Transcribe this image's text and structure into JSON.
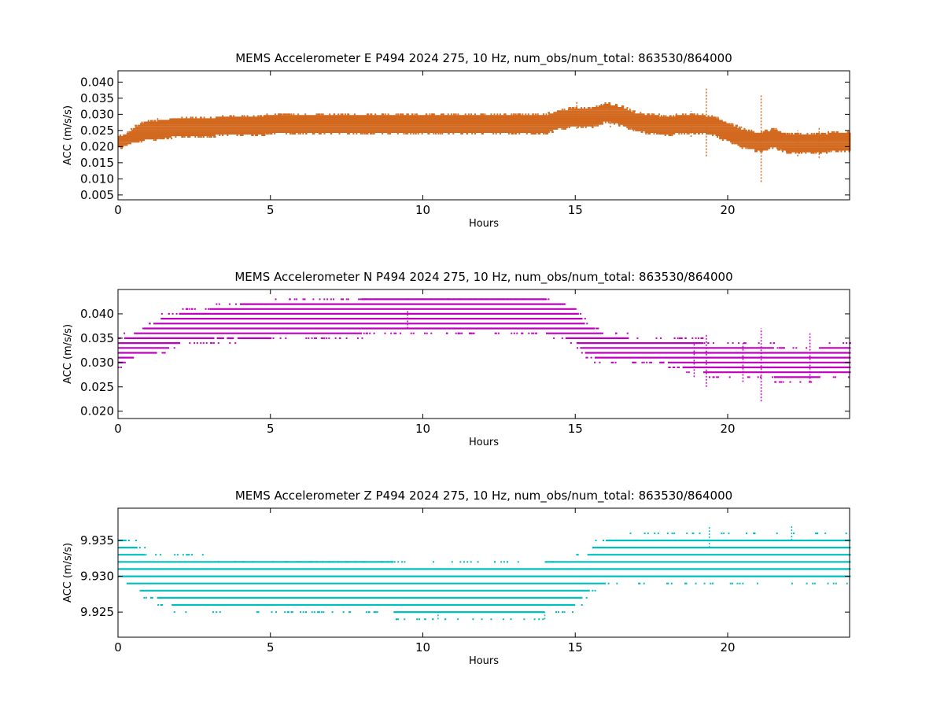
{
  "chart_data": [
    {
      "type": "scatter",
      "title": "MEMS Accelerometer E P494 2024 275, 10 Hz, num_obs/num_total: 863530/864000",
      "xlabel": "Hours",
      "ylabel": "ACC (m/s/s)",
      "xlim": [
        0,
        24
      ],
      "ylim": [
        0.0035,
        0.0435
      ],
      "xticks": [
        0,
        5,
        10,
        15,
        20
      ],
      "yticks": [
        0.005,
        0.01,
        0.015,
        0.02,
        0.025,
        0.03,
        0.035,
        0.04
      ],
      "ytick_labels": [
        "0.005",
        "0.010",
        "0.015",
        "0.020",
        "0.025",
        "0.030",
        "0.035",
        "0.040"
      ],
      "xtick_labels": [
        "0",
        "5",
        "10",
        "15",
        "20"
      ],
      "color": "#d2691e",
      "grid": false,
      "quantum": 0.0005,
      "series": [
        {
          "x": [
            0,
            0.25,
            0.5,
            0.75,
            1,
            1.5,
            2,
            3,
            4,
            5,
            6,
            7,
            8,
            9,
            10,
            11,
            12,
            13,
            14,
            14.5,
            15,
            15.5,
            16,
            16.5,
            17,
            17.5,
            18,
            18.5,
            19,
            19.5,
            20,
            20.5,
            21,
            21.5,
            22,
            22.5,
            23,
            23.5,
            24
          ],
          "y": [
            0.0215,
            0.022,
            0.0235,
            0.0245,
            0.025,
            0.0255,
            0.026,
            0.0262,
            0.0265,
            0.0268,
            0.027,
            0.027,
            0.027,
            0.027,
            0.027,
            0.027,
            0.027,
            0.027,
            0.027,
            0.0285,
            0.029,
            0.029,
            0.0305,
            0.0295,
            0.0275,
            0.027,
            0.0265,
            0.027,
            0.027,
            0.0265,
            0.0245,
            0.0225,
            0.0215,
            0.0225,
            0.021,
            0.021,
            0.021,
            0.0215,
            0.0215
          ],
          "spread": [
            0.0015,
            0.0015,
            0.002,
            0.0025,
            0.0025,
            0.0025,
            0.0025,
            0.0025,
            0.0025,
            0.0025,
            0.0025,
            0.0025,
            0.0025,
            0.0025,
            0.0025,
            0.0025,
            0.0025,
            0.0025,
            0.0025,
            0.0025,
            0.0025,
            0.0025,
            0.0025,
            0.0025,
            0.0025,
            0.0025,
            0.0025,
            0.0025,
            0.0025,
            0.0025,
            0.0025,
            0.0025,
            0.0025,
            0.0025,
            0.0025,
            0.0025,
            0.0025,
            0.0025,
            0.0025
          ]
        }
      ],
      "spikes": [
        {
          "x": 19.3,
          "y_min": 0.017,
          "y_max": 0.038
        },
        {
          "x": 21.1,
          "y_min": 0.009,
          "y_max": 0.036
        },
        {
          "x": 15.05,
          "y_min": 0.0255,
          "y_max": 0.034
        },
        {
          "x": 16.15,
          "y_min": 0.026,
          "y_max": 0.033
        },
        {
          "x": 18.8,
          "y_min": 0.023,
          "y_max": 0.031
        },
        {
          "x": 22.3,
          "y_min": 0.017,
          "y_max": 0.025
        },
        {
          "x": 23.0,
          "y_min": 0.0165,
          "y_max": 0.026
        },
        {
          "x": 1.3,
          "y_min": 0.0225,
          "y_max": 0.029
        }
      ]
    },
    {
      "type": "scatter",
      "title": "MEMS Accelerometer N P494 2024 275, 10 Hz, num_obs/num_total: 863530/864000",
      "xlabel": "Hours",
      "ylabel": "ACC (m/s/s)",
      "xlim": [
        0,
        24
      ],
      "ylim": [
        0.0185,
        0.045
      ],
      "xticks": [
        0,
        5,
        10,
        15,
        20
      ],
      "yticks": [
        0.02,
        0.025,
        0.03,
        0.035,
        0.04
      ],
      "ytick_labels": [
        "0.020",
        "0.025",
        "0.030",
        "0.035",
        "0.040"
      ],
      "xtick_labels": [
        "0",
        "5",
        "10",
        "15",
        "20"
      ],
      "color": "#bf00bf",
      "grid": false,
      "quantum": 0.001,
      "series": [
        {
          "x": [
            0,
            0.5,
            1,
            1.5,
            2,
            2.5,
            3,
            4,
            5,
            6,
            7,
            8,
            9,
            10,
            11,
            12,
            13,
            14,
            14.5,
            15,
            15.3,
            15.6,
            16,
            16.5,
            17,
            17.5,
            18,
            18.5,
            19,
            19.5,
            20,
            20.5,
            21,
            21.5,
            22,
            22.5,
            23,
            23.5,
            24
          ],
          "y": [
            0.032,
            0.0335,
            0.0345,
            0.036,
            0.037,
            0.0375,
            0.038,
            0.0385,
            0.0385,
            0.039,
            0.039,
            0.0395,
            0.0395,
            0.0395,
            0.0395,
            0.0395,
            0.0395,
            0.0395,
            0.039,
            0.0375,
            0.035,
            0.034,
            0.033,
            0.033,
            0.0325,
            0.0325,
            0.032,
            0.032,
            0.0315,
            0.03,
            0.03,
            0.03,
            0.03,
            0.03,
            0.0295,
            0.0295,
            0.03,
            0.03,
            0.03
          ],
          "spread": [
            0.002,
            0.002,
            0.0025,
            0.003,
            0.0025,
            0.0025,
            0.0025,
            0.003,
            0.003,
            0.003,
            0.003,
            0.003,
            0.003,
            0.003,
            0.003,
            0.003,
            0.003,
            0.003,
            0.003,
            0.003,
            0.0025,
            0.0025,
            0.002,
            0.002,
            0.0015,
            0.0015,
            0.0015,
            0.0025,
            0.0025,
            0.0025,
            0.0025,
            0.0025,
            0.0025,
            0.0025,
            0.0025,
            0.0025,
            0.0025,
            0.0025,
            0.0025
          ]
        }
      ],
      "spikes": [
        {
          "x": 19.3,
          "y_min": 0.025,
          "y_max": 0.036
        },
        {
          "x": 21.1,
          "y_min": 0.022,
          "y_max": 0.037
        },
        {
          "x": 20.5,
          "y_min": 0.026,
          "y_max": 0.034
        },
        {
          "x": 22.7,
          "y_min": 0.026,
          "y_max": 0.036
        },
        {
          "x": 18.9,
          "y_min": 0.027,
          "y_max": 0.034
        },
        {
          "x": 7.0,
          "y_min": 0.041,
          "y_max": 0.041
        },
        {
          "x": 9.5,
          "y_min": 0.037,
          "y_max": 0.041
        }
      ]
    },
    {
      "type": "scatter",
      "title": "MEMS Accelerometer Z P494 2024 275, 10 Hz, num_obs/num_total: 863530/864000",
      "xlabel": "Hours",
      "ylabel": "ACC (m/s/s)",
      "xlim": [
        0,
        24
      ],
      "ylim": [
        9.9215,
        9.9395
      ],
      "xticks": [
        0,
        5,
        10,
        15,
        20
      ],
      "yticks": [
        9.925,
        9.93,
        9.935
      ],
      "ytick_labels": [
        "9.925",
        "9.930",
        "9.935"
      ],
      "xtick_labels": [
        "0",
        "5",
        "10",
        "15",
        "20"
      ],
      "color": "#00bfbf",
      "grid": false,
      "quantum": 0.001,
      "series": [
        {
          "x": [
            0,
            0.5,
            1,
            1.5,
            2,
            3,
            4,
            5,
            6,
            7,
            8,
            9,
            10,
            11,
            12,
            13,
            14,
            15,
            15.3,
            15.6,
            16,
            16.5,
            17,
            18,
            19,
            20,
            21,
            22,
            23,
            24
          ],
          "y": [
            9.9325,
            9.9315,
            9.93,
            9.9295,
            9.929,
            9.9285,
            9.9285,
            9.9285,
            9.9285,
            9.9285,
            9.9285,
            9.9285,
            9.928,
            9.928,
            9.928,
            9.928,
            9.9285,
            9.929,
            9.93,
            9.9315,
            9.932,
            9.9325,
            9.9325,
            9.9325,
            9.9325,
            9.9325,
            9.9325,
            9.9325,
            9.9325,
            9.9325
          ],
          "spread": [
            0.0025,
            0.0025,
            0.002,
            0.0025,
            0.003,
            0.003,
            0.003,
            0.003,
            0.003,
            0.003,
            0.003,
            0.003,
            0.003,
            0.003,
            0.003,
            0.003,
            0.003,
            0.0025,
            0.002,
            0.0025,
            0.0025,
            0.0025,
            0.0025,
            0.0025,
            0.0025,
            0.0025,
            0.0025,
            0.0025,
            0.0025,
            0.0025
          ]
        }
      ],
      "spikes": [
        {
          "x": 19.4,
          "y_min": 9.934,
          "y_max": 9.937
        },
        {
          "x": 22.1,
          "y_min": 9.935,
          "y_max": 9.937
        },
        {
          "x": 10.5,
          "y_min": 9.924,
          "y_max": 9.925
        },
        {
          "x": 14.0,
          "y_min": 9.924,
          "y_max": 9.925
        }
      ]
    }
  ]
}
